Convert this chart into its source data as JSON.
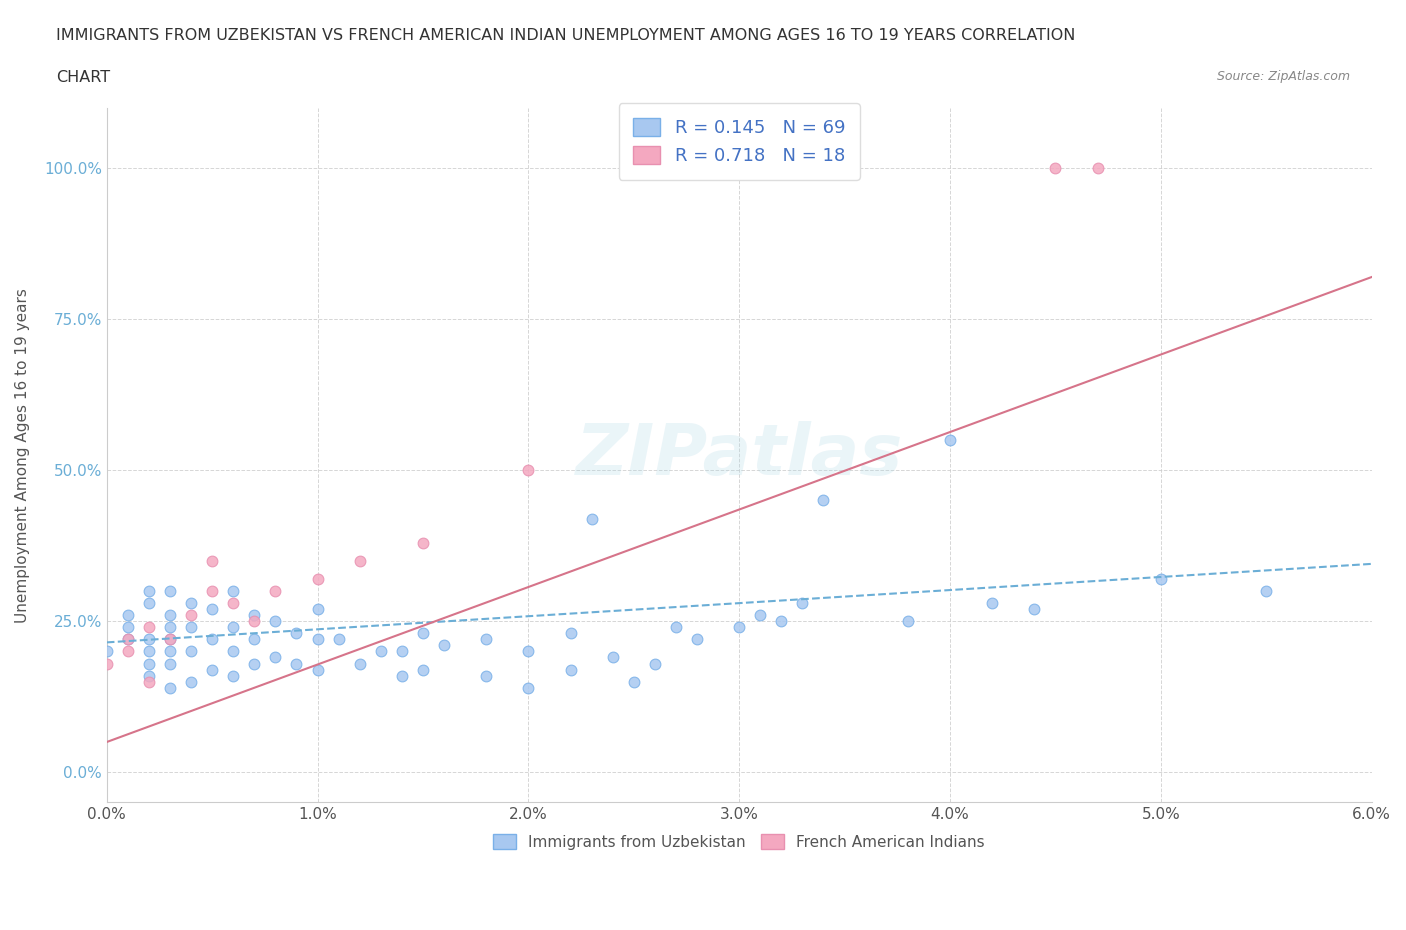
{
  "title_line1": "IMMIGRANTS FROM UZBEKISTAN VS FRENCH AMERICAN INDIAN UNEMPLOYMENT AMONG AGES 16 TO 19 YEARS CORRELATION",
  "title_line2": "CHART",
  "source": "Source: ZipAtlas.com",
  "ylabel": "Unemployment Among Ages 16 to 19 years",
  "xlim": [
    0.0,
    0.06
  ],
  "ylim": [
    -0.05,
    1.1
  ],
  "xticks": [
    0.0,
    0.01,
    0.02,
    0.03,
    0.04,
    0.05,
    0.06
  ],
  "xtick_labels": [
    "0.0%",
    "1.0%",
    "2.0%",
    "3.0%",
    "4.0%",
    "5.0%",
    "6.0%"
  ],
  "yticks": [
    0.0,
    0.25,
    0.5,
    0.75,
    1.0
  ],
  "ytick_labels": [
    "0.0%",
    "25.0%",
    "50.0%",
    "75.0%",
    "100.0%"
  ],
  "blue_color": "#a8c8f0",
  "pink_color": "#f4a8c0",
  "blue_marker_edge": "#7ab0e8",
  "pink_marker_edge": "#e890b0",
  "trend_blue": "#6baed6",
  "trend_pink": "#d6748a",
  "legend_text_color": "#4472c4",
  "watermark": "ZIPatlas",
  "blue_scatter_x": [
    0.0,
    0.001,
    0.001,
    0.001,
    0.002,
    0.002,
    0.002,
    0.002,
    0.002,
    0.002,
    0.003,
    0.003,
    0.003,
    0.003,
    0.003,
    0.003,
    0.003,
    0.004,
    0.004,
    0.004,
    0.004,
    0.005,
    0.005,
    0.005,
    0.006,
    0.006,
    0.006,
    0.006,
    0.007,
    0.007,
    0.007,
    0.008,
    0.008,
    0.009,
    0.009,
    0.01,
    0.01,
    0.01,
    0.011,
    0.012,
    0.013,
    0.014,
    0.014,
    0.015,
    0.015,
    0.016,
    0.018,
    0.018,
    0.02,
    0.02,
    0.022,
    0.022,
    0.023,
    0.024,
    0.025,
    0.026,
    0.027,
    0.028,
    0.03,
    0.031,
    0.032,
    0.033,
    0.034,
    0.038,
    0.04,
    0.042,
    0.044,
    0.05,
    0.055
  ],
  "blue_scatter_y": [
    0.2,
    0.22,
    0.24,
    0.26,
    0.16,
    0.18,
    0.2,
    0.22,
    0.28,
    0.3,
    0.14,
    0.18,
    0.2,
    0.22,
    0.24,
    0.26,
    0.3,
    0.15,
    0.2,
    0.24,
    0.28,
    0.17,
    0.22,
    0.27,
    0.16,
    0.2,
    0.24,
    0.3,
    0.18,
    0.22,
    0.26,
    0.19,
    0.25,
    0.18,
    0.23,
    0.17,
    0.22,
    0.27,
    0.22,
    0.18,
    0.2,
    0.16,
    0.2,
    0.17,
    0.23,
    0.21,
    0.16,
    0.22,
    0.14,
    0.2,
    0.17,
    0.23,
    0.42,
    0.19,
    0.15,
    0.18,
    0.24,
    0.22,
    0.24,
    0.26,
    0.25,
    0.28,
    0.45,
    0.25,
    0.55,
    0.28,
    0.27,
    0.32,
    0.3
  ],
  "pink_scatter_x": [
    0.0,
    0.001,
    0.001,
    0.002,
    0.002,
    0.003,
    0.004,
    0.005,
    0.005,
    0.006,
    0.007,
    0.008,
    0.01,
    0.012,
    0.015,
    0.02,
    0.045,
    0.047
  ],
  "pink_scatter_y": [
    0.18,
    0.2,
    0.22,
    0.15,
    0.24,
    0.22,
    0.26,
    0.3,
    0.35,
    0.28,
    0.25,
    0.3,
    0.32,
    0.35,
    0.38,
    0.5,
    1.0,
    1.0
  ],
  "blue_trend_x": [
    0.0,
    0.06
  ],
  "blue_trend_y": [
    0.215,
    0.345
  ],
  "pink_trend_x": [
    0.0,
    0.06
  ],
  "pink_trend_y": [
    0.05,
    0.82
  ]
}
